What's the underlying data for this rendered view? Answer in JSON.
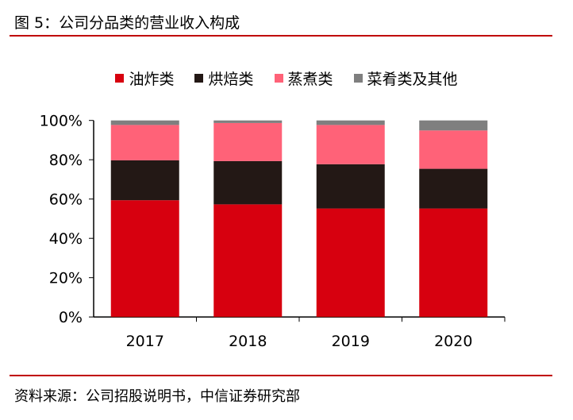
{
  "title": "图 5：公司分品类的营业收入构成",
  "source": "资料来源：公司招股说明书，中信证券研究部",
  "chart_data": {
    "type": "bar",
    "stacked": true,
    "categories": [
      "2017",
      "2018",
      "2019",
      "2020"
    ],
    "series": [
      {
        "name": "油炸类",
        "color": "#d7000f",
        "values": [
          59.4,
          57.3,
          55.2,
          55.2
        ]
      },
      {
        "name": "烘焙类",
        "color": "#231815",
        "values": [
          20.3,
          22.0,
          22.5,
          20.2
        ]
      },
      {
        "name": "蒸煮类",
        "color": "#ff6278",
        "values": [
          18.0,
          19.4,
          20.0,
          19.5
        ]
      },
      {
        "name": "菜肴类及其他",
        "color": "#7f7f7f",
        "values": [
          2.3,
          1.3,
          2.3,
          5.1
        ]
      }
    ],
    "yticks": [
      "0%",
      "20%",
      "40%",
      "60%",
      "80%",
      "100%"
    ],
    "ylim": [
      0,
      100
    ],
    "legend": "top",
    "grid": false
  }
}
